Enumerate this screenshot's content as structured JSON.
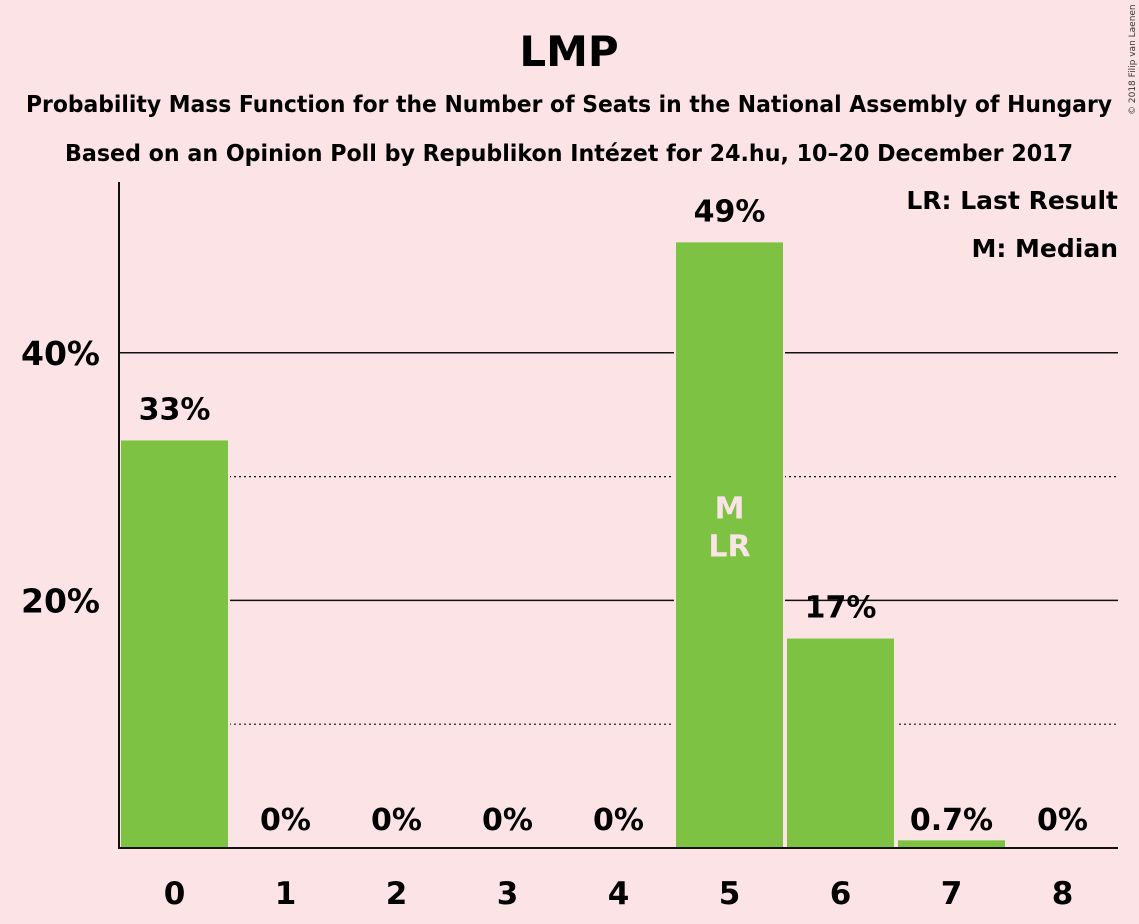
{
  "chart_data": {
    "type": "bar",
    "title": "LMP",
    "subtitle_lines": [
      "Probability Mass Function for the Number of Seats in the National Assembly of Hungary",
      "Based on an Opinion Poll by Republikon Intézet for 24.hu, 10–20 December 2017"
    ],
    "categories": [
      "0",
      "1",
      "2",
      "3",
      "4",
      "5",
      "6",
      "7",
      "8"
    ],
    "values": [
      33,
      0,
      0,
      0,
      0,
      49,
      17,
      0.7,
      0
    ],
    "value_labels": [
      "33%",
      "0%",
      "0%",
      "0%",
      "0%",
      "49%",
      "17%",
      "0.7%",
      "0%"
    ],
    "ylim": [
      0,
      53.5
    ],
    "y_ticks_labeled": [
      {
        "value": 20,
        "label": "20%"
      },
      {
        "value": 40,
        "label": "40%"
      }
    ],
    "y_gridlines_dotted": [
      10,
      30
    ],
    "bar_color": "#7DC243",
    "median_category": "5",
    "last_result_category": "5",
    "median_marker": "M",
    "last_result_marker": "LR",
    "legend": [
      "LR: Last Result",
      "M: Median"
    ],
    "legend_position": "top-right",
    "credit": "© 2018 Filip van Laenen"
  }
}
